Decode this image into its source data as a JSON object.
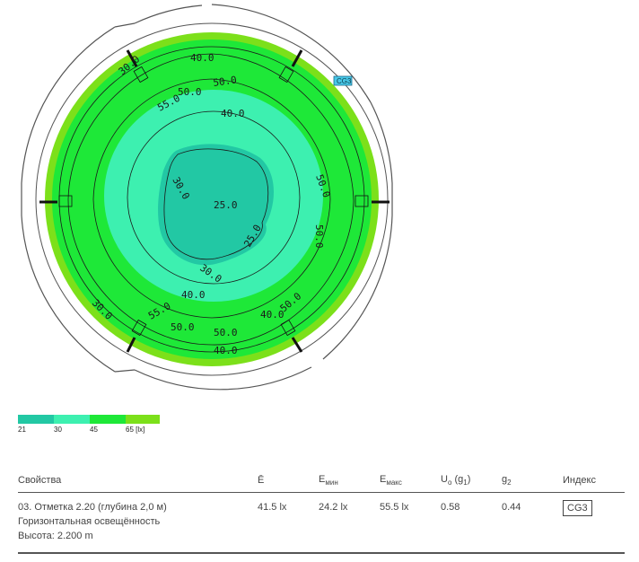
{
  "plan": {
    "index_tag": "CG3",
    "contour_labels": [
      "40.0",
      "50.0",
      "55.0",
      "40.0",
      "50.0",
      "30.0",
      "25.0",
      "25.0",
      "30.0",
      "40.0",
      "50.0",
      "50.0",
      "50.0",
      "55.0",
      "40.0",
      "50.0",
      "50.0",
      "30.0",
      "40.0",
      "30.0"
    ],
    "colors": {
      "band_lowest": "#22c8a4",
      "band_low": "#3df0b0",
      "band_mid": "#1ee838",
      "band_high": "#7ce01a",
      "contour": "#1a1a1a"
    }
  },
  "legend": {
    "ticks": [
      "21",
      "30",
      "45",
      "65 [lx]"
    ],
    "colors": [
      "#22c8a4",
      "#3df0b0",
      "#1ee838",
      "#7ce01a"
    ]
  },
  "table": {
    "headers": {
      "properties": "Свойства",
      "e_avg": "Ē",
      "e_min_base": "E",
      "e_min_sub": "мин",
      "e_max_base": "E",
      "e_max_sub": "макс",
      "uo_base": "U",
      "uo_sub": "o",
      "uo_paren": "(g",
      "uo_paren_sub": "1",
      "uo_close": ")",
      "g2_base": "g",
      "g2_sub": "2",
      "index": "Индекс"
    },
    "row": {
      "line1": "03. Отметка 2.20 (глубина 2,0 м)",
      "line2": "Горизонтальная освещённость",
      "line3": "Высота: 2.200 m",
      "e_avg": "41.5 lx",
      "e_min": "24.2 lx",
      "e_max": "55.5 lx",
      "uo": "0.58",
      "g2": "0.44",
      "index": "CG3"
    }
  }
}
